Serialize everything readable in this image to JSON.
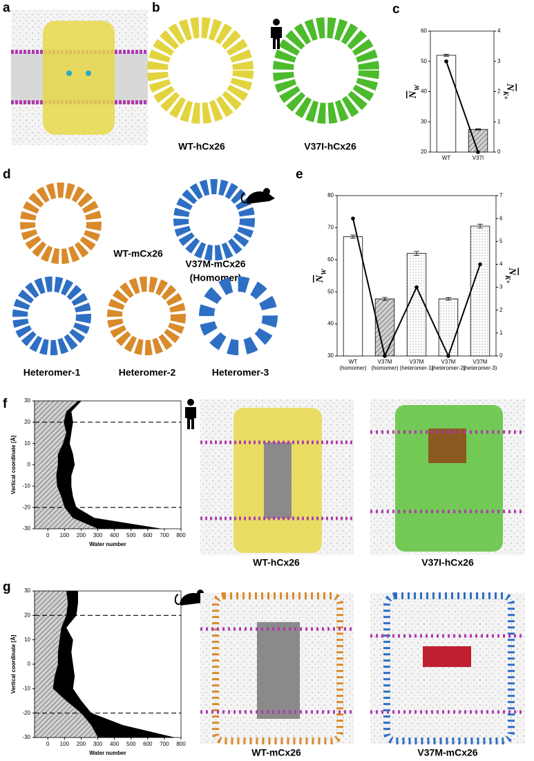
{
  "panel_letters": [
    "a",
    "b",
    "c",
    "d",
    "e",
    "f",
    "g"
  ],
  "structure_labels": [
    "WT-hCx26",
    "V37I-hCx26",
    "WT-mCx26",
    "V37M-mCx26",
    "(Homomer)",
    "Heteromer-1",
    "Heteromer-2",
    "Heteromer-3",
    "WT-hCx26",
    "V37I-hCx26",
    "WT-mCx26",
    "V37M-mCx26"
  ],
  "chart_data": [
    {
      "type": "bar",
      "categories": [
        "WT",
        "V37I"
      ],
      "series": [
        {
          "values": [
            52,
            27.5
          ],
          "errors": [
            0.3,
            0.2
          ],
          "styles": [
            "open",
            "hatched"
          ],
          "color": "#000000"
        },
        {
          "values": [
            3,
            0
          ],
          "axis": "y2",
          "color": "#000000"
        }
      ],
      "ylabel": "N",
      "ylabel_sub": "W",
      "y2label": "N",
      "y2label_sub": "K+",
      "ylim": [
        20,
        60
      ],
      "yticks": [
        20,
        30,
        40,
        50,
        60
      ],
      "y2lim": [
        0,
        4
      ],
      "y2ticks": [
        0,
        1,
        2,
        3,
        4
      ]
    },
    {
      "type": "bar",
      "categories": [
        "WT",
        "V37M",
        "V37M",
        "V37M",
        "V37M"
      ],
      "category_notes": [
        "(homomer)",
        "(homomer)",
        "(heteromer-1)",
        "(heteromer-2)",
        "(heteromer-3)"
      ],
      "series": [
        {
          "values": [
            67.2,
            47.8,
            62,
            47.8,
            70.5
          ],
          "errors": [
            0.5,
            0.5,
            0.6,
            0.4,
            0.6
          ],
          "styles": [
            "open",
            "hatched",
            "dotted",
            "dotted",
            "dotted"
          ],
          "color": "#000000"
        },
        {
          "values": [
            6,
            0,
            3,
            0,
            4
          ],
          "axis": "y2",
          "color": "#000000"
        }
      ],
      "ylabel": "N",
      "ylabel_sub": "W",
      "y2label": "N",
      "y2label_sub": "K+",
      "ylim": [
        30,
        80
      ],
      "yticks": [
        30,
        40,
        50,
        60,
        70,
        80
      ],
      "y2lim": [
        0,
        7
      ],
      "y2ticks": [
        0,
        1,
        2,
        3,
        4,
        5,
        6,
        7
      ]
    },
    {
      "type": "area",
      "y": [
        -30,
        -25,
        -20,
        -15,
        -10,
        -5,
        0,
        5,
        10,
        15,
        20,
        25,
        30
      ],
      "series": [
        {
          "values": [
            680,
            280,
            170,
            150,
            140,
            140,
            160,
            150,
            130,
            140,
            150,
            140,
            200
          ],
          "color": "#000000",
          "fill": "solid"
        },
        {
          "values": [
            300,
            150,
            100,
            80,
            55,
            50,
            60,
            60,
            90,
            110,
            95,
            110,
            180
          ],
          "color": "#888888",
          "fill": "hatched"
        }
      ],
      "xlabel": "Water number",
      "ylabel": "Vertical coordinate [Å]",
      "xlim": [
        -80,
        800
      ],
      "xticks": [
        0,
        100,
        200,
        300,
        400,
        500,
        600,
        700,
        800
      ],
      "ylim": [
        -30,
        30
      ],
      "yticks": [
        -30,
        -20,
        -10,
        0,
        10,
        20,
        30
      ],
      "reference_lines": [
        20,
        -20
      ]
    },
    {
      "type": "area",
      "y": [
        -30,
        -25,
        -20,
        -15,
        -10,
        -5,
        0,
        5,
        10,
        15,
        20,
        25,
        30
      ],
      "series": [
        {
          "values": [
            760,
            450,
            260,
            200,
            150,
            160,
            150,
            140,
            150,
            110,
            170,
            180,
            180
          ],
          "color": "#000000",
          "fill": "solid"
        },
        {
          "values": [
            300,
            260,
            200,
            110,
            30,
            40,
            60,
            60,
            70,
            80,
            110,
            120,
            110
          ],
          "color": "#888888",
          "fill": "hatched"
        }
      ],
      "xlabel": "Water number",
      "ylabel": "Vertical coordinate [Å]",
      "xlim": [
        -80,
        800
      ],
      "xticks": [
        0,
        100,
        200,
        300,
        400,
        500,
        600,
        700,
        800
      ],
      "ylim": [
        -30,
        30
      ],
      "yticks": [
        -30,
        -20,
        -10,
        0,
        10,
        20,
        30
      ],
      "reference_lines": [
        20,
        -20
      ]
    }
  ]
}
